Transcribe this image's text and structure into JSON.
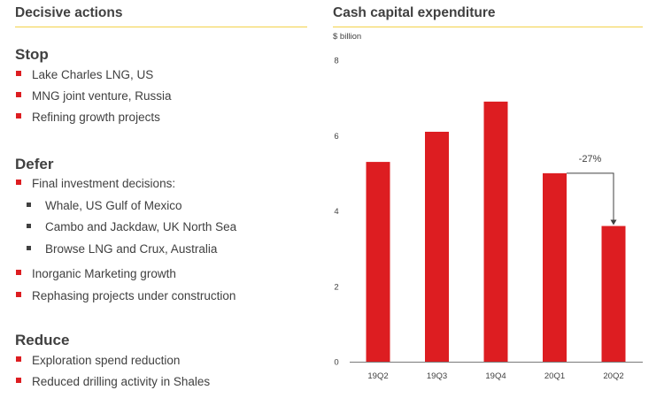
{
  "left_panel": {
    "title": "Decisive actions",
    "sections": [
      {
        "heading": "Stop",
        "items": [
          {
            "text": "Lake Charles LNG, US"
          },
          {
            "text": "MNG joint venture, Russia"
          },
          {
            "text": "Refining growth projects"
          }
        ]
      },
      {
        "heading": "Defer",
        "items": [
          {
            "text": "Final investment decisions:",
            "sub_items": [
              "Whale, US Gulf of Mexico",
              "Cambo and Jackdaw, UK North Sea",
              "Browse LNG and Crux, Australia"
            ]
          },
          {
            "text": "Inorganic Marketing growth"
          },
          {
            "text": "Rephasing projects under construction"
          }
        ]
      },
      {
        "heading": "Reduce",
        "items": [
          {
            "text": "Exploration spend reduction"
          },
          {
            "text": "Reduced drilling activity in Shales"
          }
        ]
      }
    ]
  },
  "chart_data": {
    "type": "bar",
    "title": "Cash capital expenditure",
    "ylabel": "$ billion",
    "categories": [
      "19Q2",
      "19Q3",
      "19Q4",
      "20Q1",
      "20Q2"
    ],
    "values": [
      5.3,
      6.1,
      6.9,
      5.0,
      3.6
    ],
    "ylim": [
      0,
      8
    ],
    "yticks": [
      0,
      2,
      4,
      6,
      8
    ],
    "grid": false,
    "bar_color": "#dd1d21",
    "annotations": [
      {
        "text": "-27%",
        "from": "20Q1",
        "to": "20Q2"
      }
    ]
  }
}
